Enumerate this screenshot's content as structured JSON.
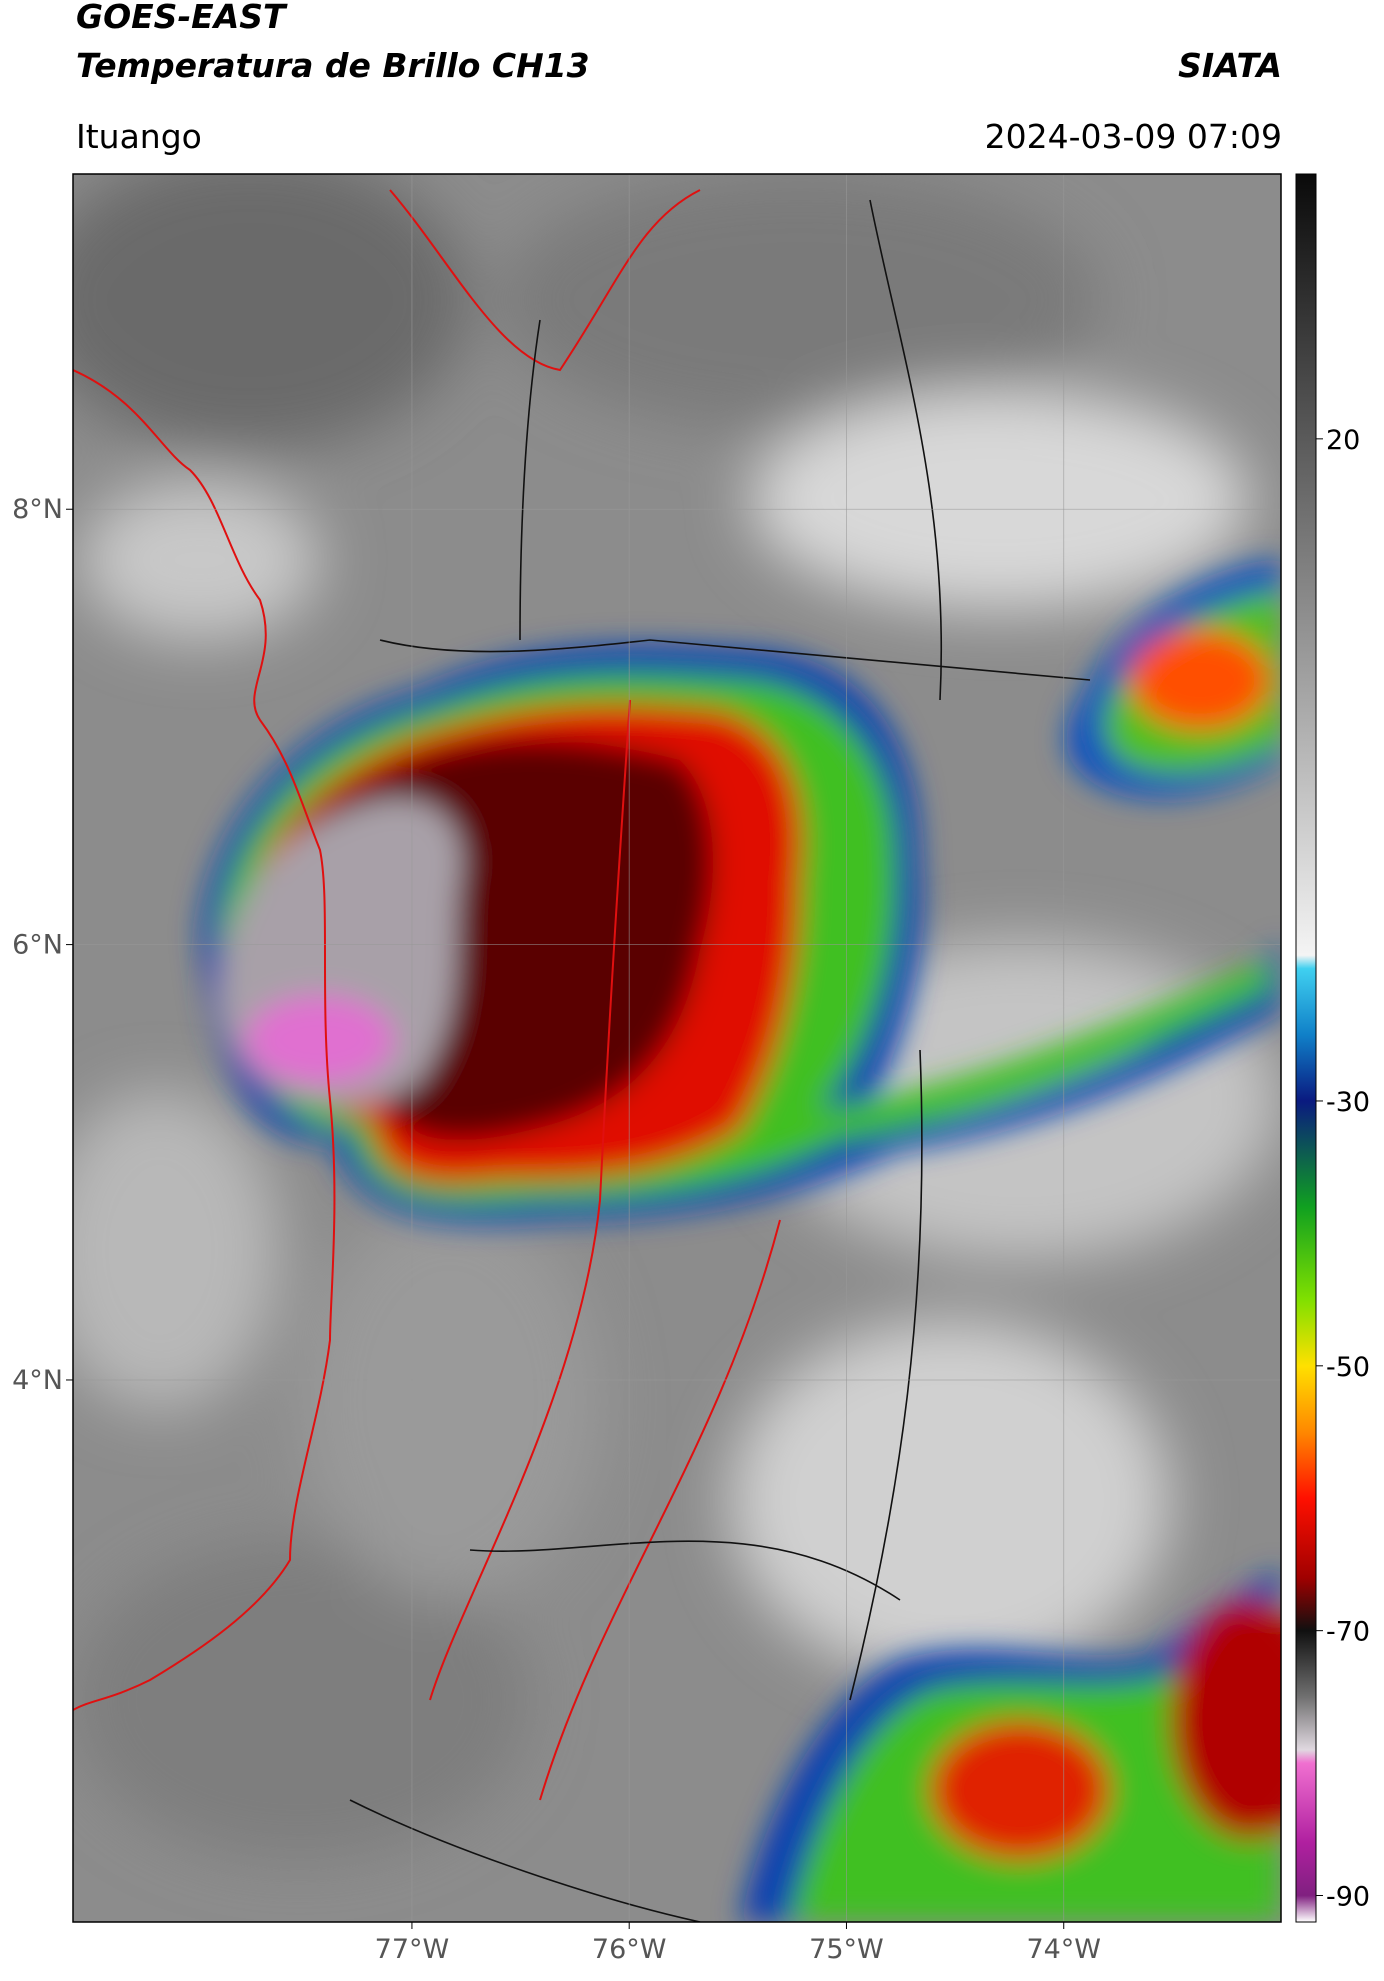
{
  "header": {
    "title": "GOES-EAST",
    "subtitle": "Temperatura de Brillo CH13",
    "source": "SIATA",
    "region": "Ituango",
    "datetime": "2024-03-09 07:09"
  },
  "map": {
    "xlim": [
      -78.56,
      -73.0
    ],
    "ylim": [
      1.51,
      9.54
    ],
    "xticks": [
      {
        "value": -77,
        "label": "77°W"
      },
      {
        "value": -76,
        "label": "76°W"
      },
      {
        "value": -75,
        "label": "75°W"
      },
      {
        "value": -74,
        "label": "74°W"
      }
    ],
    "yticks": [
      {
        "value": 8,
        "label": "8°N"
      },
      {
        "value": 6,
        "label": "6°N"
      },
      {
        "value": 4,
        "label": "4°N"
      }
    ],
    "grid": true
  },
  "colorbar": {
    "clim": [
      -92,
      40
    ],
    "ticks": [
      20,
      -30,
      -50,
      -70,
      -90
    ],
    "stops": [
      40,
      20,
      0,
      -19,
      -20,
      -25,
      -30,
      -38,
      -45,
      -50,
      -55,
      -60,
      -66,
      -70,
      -75,
      -79,
      -80,
      -86,
      -90,
      -92
    ],
    "colors": [
      "#0a0a0a",
      "#5a5a5a",
      "#a8a8a8",
      "#f4f4f4",
      "#40d0f0",
      "#1080c8",
      "#0a1a80",
      "#10a020",
      "#80e000",
      "#ffe000",
      "#ff8800",
      "#ff1000",
      "#a00000",
      "#101010",
      "#707070",
      "#e0d8e0",
      "#f070d0",
      "#b020a0",
      "#802080",
      "#ffffff"
    ]
  }
}
